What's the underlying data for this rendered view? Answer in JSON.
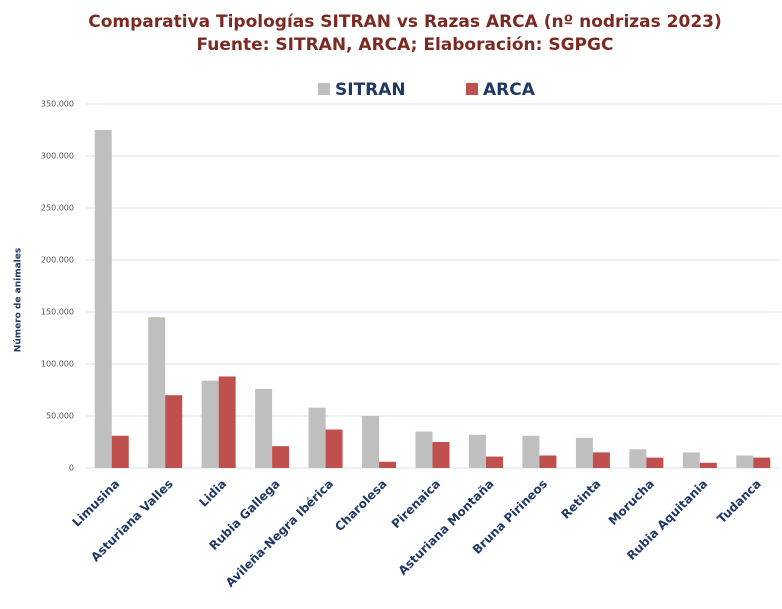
{
  "chart_data": {
    "type": "bar",
    "title": "Comparativa Tipologías SITRAN vs Razas ARCA (nº nodrizas 2023)",
    "subtitle": "Fuente: SITRAN, ARCA; Elaboración: SGPGC",
    "y_label": "Número de animales",
    "categories": [
      "Limusina",
      "Asturiana Valles",
      "Lidia",
      "Rubia Gallega",
      "Avileña-Negra Ibérica",
      "Charolesa",
      "Pirenaica",
      "Asturiana Montaña",
      "Bruna Pirineos",
      "Retinta",
      "Morucha",
      "Rubia Aquitania",
      "Tudanca"
    ],
    "series": [
      {
        "name": "SITRAN",
        "color": "#bfbfbf",
        "values": [
          325000,
          145000,
          84000,
          76000,
          58000,
          50000,
          35000,
          32000,
          31000,
          29000,
          18000,
          15000,
          12000
        ]
      },
      {
        "name": "ARCA",
        "color": "#c0504d",
        "values": [
          31000,
          70000,
          88000,
          21000,
          37000,
          6000,
          25000,
          11000,
          12000,
          15000,
          10000,
          5000,
          10000
        ]
      }
    ],
    "ylim": [
      0,
      350000
    ],
    "yticks": [
      0,
      {
        "value": 50000,
        "label": "50.000"
      },
      {
        "value": 100000,
        "label": "100.000"
      },
      {
        "value": 150000,
        "label": "150.000"
      },
      {
        "value": 200000,
        "label": "200.000"
      },
      {
        "value": 250000,
        "label": "250.000"
      },
      {
        "value": 300000,
        "label": "300.000"
      },
      {
        "value": 350000,
        "label": "350.000"
      }
    ],
    "grid": true,
    "legend": "top"
  }
}
